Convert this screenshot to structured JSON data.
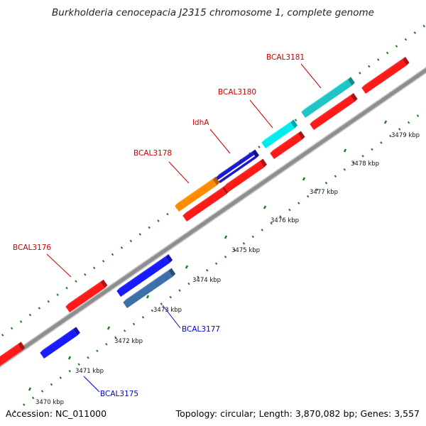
{
  "title": "Burkholderia cenocepacia J2315 chromosome 1, complete genome",
  "footer": {
    "accession": "Accession: NC_011000",
    "summary": "Topology: circular; Length: 3,870,082 bp; Genes: 3,557"
  },
  "colors": {
    "backbone": "#8e8e8e",
    "tick": "#1f7a1f",
    "forward_label": "#cc0000",
    "reverse_label": "#0000cc"
  },
  "ticks": [
    {
      "label": "3470 kbp"
    },
    {
      "label": "3471 kbp"
    },
    {
      "label": "3472 kbp"
    },
    {
      "label": "3473 kbp"
    },
    {
      "label": "3474 kbp"
    },
    {
      "label": "3475 kbp"
    },
    {
      "label": "3476 kbp"
    },
    {
      "label": "3477 kbp"
    },
    {
      "label": "3478 kbp"
    },
    {
      "label": "3479 kbp"
    }
  ],
  "genes": [
    {
      "label": "BCAL3175",
      "strand": "reverse",
      "color": "#1a1aff"
    },
    {
      "label": "BCAL3176",
      "strand": "forward",
      "color": "#ff1a1a"
    },
    {
      "label": "BCAL3177",
      "strand": "reverse",
      "color": "#3d6fa8"
    },
    {
      "label": "BCAL3178",
      "strand": "forward",
      "color": "#ff8c00"
    },
    {
      "label": "ldhA",
      "strand": "forward",
      "color": "#1a1acc"
    },
    {
      "label": "BCAL3180",
      "strand": "forward",
      "color": "#00ecec"
    },
    {
      "label": "BCAL3181",
      "strand": "forward",
      "color": "#20c4c4"
    }
  ]
}
